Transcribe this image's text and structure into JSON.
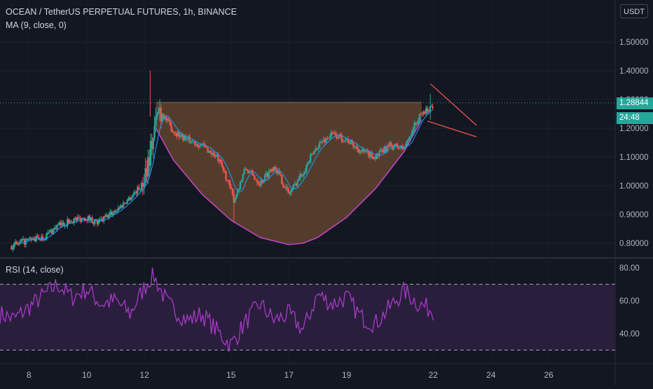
{
  "header": {
    "title": "OCEAN / TetherUS PERPETUAL FUTURES, 1h, BINANCE",
    "indicator": "MA (9, close, 0)",
    "currency": "USDT"
  },
  "rsi_panel": {
    "label": "RSI (14, close)"
  },
  "last_price": {
    "value": "1.28844",
    "countdown": "24:48"
  },
  "colors": {
    "background": "#131722",
    "up": "#26a69a",
    "down": "#ef5350",
    "cup_fill": "#6b4a31",
    "cup_stroke": "#c045c0",
    "rsi_line": "#a53bc5",
    "rsi_band": "#2a1e3d",
    "trend_lines": "#ef5350"
  },
  "chart_data": [
    {
      "type": "candlestick",
      "y_ticks": [
        "1.50000",
        "1.40000",
        "1.30000",
        "1.20000",
        "1.10000",
        "1.00000",
        "0.90000",
        "0.80000"
      ],
      "ylim": [
        0.75,
        1.55
      ],
      "x_ticks": [
        "8",
        "10",
        "12",
        "15",
        "17",
        "19",
        "22",
        "24",
        "26"
      ],
      "x_tick_days": [
        8,
        10,
        12,
        15,
        17,
        19,
        22,
        24,
        26
      ],
      "xlim": [
        7.0,
        28.3
      ],
      "last_price": 1.28844,
      "series": [
        {
          "name": "price_path",
          "x": [
            7.4,
            8.0,
            8.5,
            9.0,
            9.5,
            10.0,
            10.4,
            10.8,
            11.2,
            11.6,
            11.9,
            12.2,
            12.5,
            13.0,
            13.5,
            14.0,
            14.5,
            14.8,
            15.1,
            15.5,
            16.0,
            16.5,
            17.0,
            17.5,
            18.0,
            18.5,
            19.0,
            19.5,
            20.0,
            20.5,
            21.0,
            21.3,
            21.6,
            22.0
          ],
          "y": [
            0.79,
            0.81,
            0.82,
            0.86,
            0.88,
            0.89,
            0.87,
            0.9,
            0.93,
            0.97,
            1.0,
            1.12,
            1.27,
            1.19,
            1.16,
            1.14,
            1.1,
            1.04,
            0.95,
            1.06,
            1.01,
            1.07,
            0.97,
            1.05,
            1.14,
            1.18,
            1.16,
            1.12,
            1.1,
            1.14,
            1.13,
            1.2,
            1.25,
            1.28
          ]
        },
        {
          "name": "cup_pattern",
          "x": [
            12.4,
            13.0,
            14.0,
            15.0,
            16.0,
            17.0,
            17.5,
            18.0,
            19.0,
            20.0,
            21.0,
            21.6
          ],
          "y": [
            1.2,
            1.09,
            0.97,
            0.88,
            0.82,
            0.795,
            0.8,
            0.82,
            0.89,
            0.99,
            1.12,
            1.23
          ],
          "rim": 1.29
        },
        {
          "name": "trend_lines",
          "upper": {
            "x": [
              21.9,
              23.5
            ],
            "y": [
              1.355,
              1.21
            ]
          },
          "lower": {
            "x": [
              21.8,
              23.5
            ],
            "y": [
              1.225,
              1.17
            ]
          }
        }
      ]
    },
    {
      "type": "line",
      "name": "RSI",
      "y_ticks": [
        "80.00",
        "60.00",
        "40.00"
      ],
      "ylim": [
        25,
        82
      ],
      "bands": [
        70,
        30
      ],
      "x": [
        7.0,
        7.5,
        8.0,
        8.5,
        9.0,
        9.5,
        10.0,
        10.5,
        11.0,
        11.5,
        12.0,
        12.3,
        12.8,
        13.5,
        14.0,
        14.5,
        15.0,
        15.5,
        16.0,
        16.5,
        17.0,
        17.5,
        18.0,
        18.5,
        19.0,
        19.5,
        20.0,
        20.5,
        21.0,
        21.5,
        22.0
      ],
      "values": [
        52,
        49,
        56,
        63,
        70,
        62,
        67,
        58,
        60,
        52,
        68,
        76,
        58,
        48,
        52,
        42,
        33,
        47,
        58,
        48,
        52,
        42,
        64,
        58,
        62,
        50,
        46,
        56,
        66,
        58,
        54
      ]
    }
  ]
}
